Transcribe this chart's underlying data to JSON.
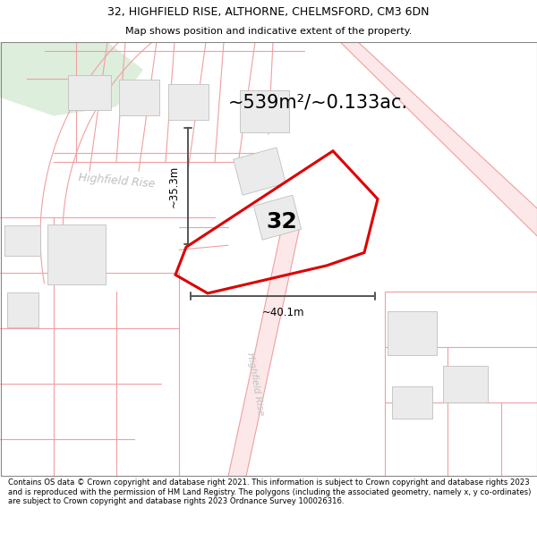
{
  "title_line1": "32, HIGHFIELD RISE, ALTHORNE, CHELMSFORD, CM3 6DN",
  "title_line2": "Map shows position and indicative extent of the property.",
  "area_text": "~539m²/~0.133ac.",
  "label_32": "32",
  "dim_vertical": "~35.3m",
  "dim_horizontal": "~40.1m",
  "footer_text": "Contains OS data © Crown copyright and database right 2021. This information is subject to Crown copyright and database rights 2023 and is reproduced with the permission of HM Land Registry. The polygons (including the associated geometry, namely x, y co-ordinates) are subject to Crown copyright and database rights 2023 Ordnance Survey 100026316.",
  "map_bg": "#ffffff",
  "road_line_color": "#f0a0a0",
  "road_fill_color": "#fce8e8",
  "building_color": "#ebebeb",
  "building_edge": "#c0c0c0",
  "plot_edge": "#dd0000",
  "plot_lw": 2.2,
  "green_color": "#ddeedd",
  "street_color": "#c0c0c0",
  "dim_line_color": "#555555",
  "title_fontsize": 9,
  "subtitle_fontsize": 8,
  "area_fontsize": 15,
  "label_fontsize": 18,
  "dim_fontsize": 8.5,
  "street_fontsize": 9
}
